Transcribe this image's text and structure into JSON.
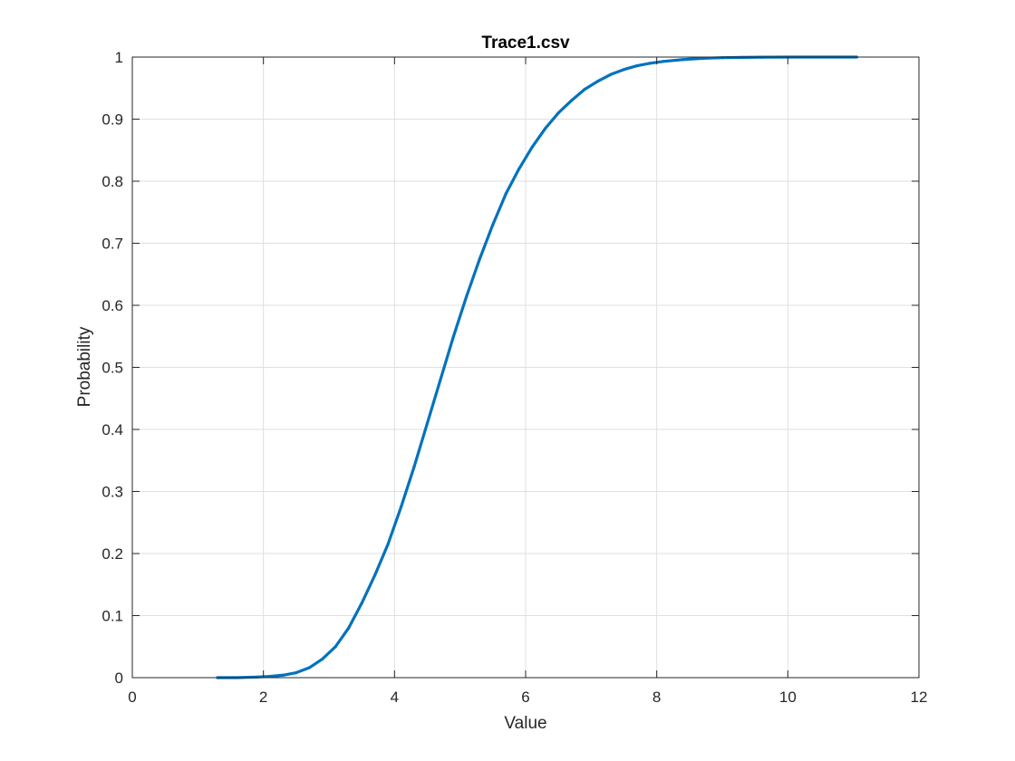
{
  "chart_data": {
    "type": "line",
    "title": "Trace1.csv",
    "xlabel": "Value",
    "ylabel": "Probability",
    "xlim": [
      0,
      12
    ],
    "ylim": [
      0,
      1
    ],
    "xticks": [
      0,
      2,
      4,
      6,
      8,
      10,
      12
    ],
    "yticks": [
      0,
      0.1,
      0.2,
      0.3,
      0.4,
      0.5,
      0.6,
      0.7,
      0.8,
      0.9,
      1
    ],
    "grid": true,
    "legend": "none",
    "series": [
      {
        "color": "#0072BD",
        "x": [
          1.3,
          1.6,
          1.9,
          2.1,
          2.3,
          2.5,
          2.7,
          2.9,
          3.1,
          3.3,
          3.5,
          3.7,
          3.9,
          4.1,
          4.3,
          4.5,
          4.7,
          4.9,
          5.1,
          5.3,
          5.5,
          5.7,
          5.9,
          6.1,
          6.3,
          6.5,
          6.7,
          6.9,
          7.1,
          7.3,
          7.5,
          7.7,
          7.9,
          8.1,
          8.4,
          8.7,
          9.0,
          9.3,
          9.6,
          10.0,
          10.5,
          11.05
        ],
        "y": [
          0.0,
          0.0,
          0.001,
          0.002,
          0.004,
          0.008,
          0.016,
          0.03,
          0.05,
          0.08,
          0.12,
          0.165,
          0.215,
          0.275,
          0.34,
          0.41,
          0.48,
          0.55,
          0.615,
          0.675,
          0.73,
          0.78,
          0.82,
          0.855,
          0.885,
          0.91,
          0.93,
          0.948,
          0.961,
          0.972,
          0.98,
          0.986,
          0.99,
          0.993,
          0.996,
          0.998,
          0.999,
          0.9995,
          0.9998,
          1.0,
          1.0,
          1.0
        ]
      }
    ]
  }
}
